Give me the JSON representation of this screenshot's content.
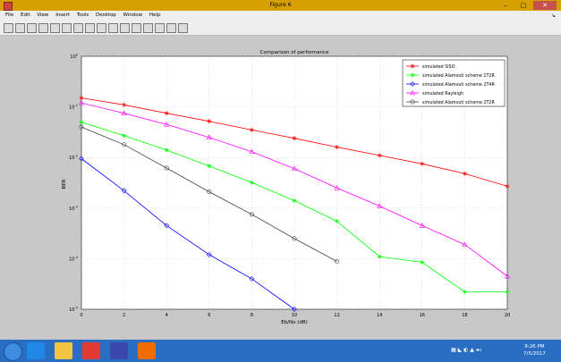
{
  "window": {
    "title": "Figure 6"
  },
  "menu": [
    "File",
    "Edit",
    "View",
    "Insert",
    "Tools",
    "Desktop",
    "Window",
    "Help"
  ],
  "toolbar": {
    "icons": [
      "new-figure-icon",
      "open-icon",
      "save-icon",
      "print-icon",
      "pointer-icon",
      "zoom-in-icon",
      "zoom-out-icon",
      "pan-icon",
      "rotate-icon",
      "data-cursor-icon",
      "brush-icon",
      "colorbar-icon",
      "legend-icon",
      "plot-tools-icon",
      "grid-icon",
      "dock-icon"
    ]
  },
  "chart_data": {
    "type": "line",
    "title": "Comparison of performance",
    "xlabel": "Eb/No (dB)",
    "ylabel": "BER",
    "xlim": [
      0,
      20
    ],
    "ylim": [
      1e-05,
      1
    ],
    "yscale": "log",
    "grid": true,
    "legend_position": "top-right",
    "xticks": [
      "0",
      "2",
      "4",
      "6",
      "8",
      "10",
      "12",
      "14",
      "16",
      "18",
      "20"
    ],
    "series": [
      {
        "name": "simulated SISO",
        "color": "#ff0000",
        "marker": "star",
        "x": [
          0,
          2,
          4,
          6,
          8,
          10,
          12,
          14,
          16,
          18,
          20
        ],
        "y": [
          0.15,
          0.11,
          0.075,
          0.052,
          0.035,
          0.024,
          0.016,
          0.011,
          0.0075,
          0.0048,
          0.0027
        ]
      },
      {
        "name": "simulated Alamouti scheme 1T2R",
        "color": "#00ff00",
        "marker": "star",
        "x": [
          0,
          2,
          4,
          6,
          8,
          10,
          12,
          14,
          16,
          18,
          20
        ],
        "y": [
          0.05,
          0.027,
          0.014,
          0.0068,
          0.0032,
          0.0014,
          0.00055,
          0.00011,
          8.5e-05,
          2.2e-05,
          2.2e-05
        ]
      },
      {
        "name": "simulated Alamouti scheme 2T4R",
        "color": "#0000ff",
        "marker": "diamond",
        "x": [
          0,
          2,
          4,
          6,
          8,
          10
        ],
        "y": [
          0.0095,
          0.0022,
          0.00045,
          0.00012,
          4e-05,
          1e-05
        ]
      },
      {
        "name": "simulated Rayleigh",
        "color": "#ff00ff",
        "marker": "triangle",
        "x": [
          0,
          2,
          4,
          6,
          8,
          10,
          12,
          14,
          16,
          18,
          20
        ],
        "y": [
          0.12,
          0.075,
          0.045,
          0.025,
          0.013,
          0.006,
          0.0025,
          0.0011,
          0.00045,
          0.00019,
          4.5e-05
        ]
      },
      {
        "name": "simulated Alamouti scheme 2T2R",
        "color": "#444444",
        "marker": "circle",
        "x": [
          0,
          2,
          4,
          6,
          8,
          10,
          12
        ],
        "y": [
          0.04,
          0.018,
          0.0062,
          0.0021,
          0.00075,
          0.00025,
          8.8e-05
        ]
      }
    ]
  },
  "taskbar": {
    "apps": [
      {
        "name": "ie-icon",
        "color": "#1e88e5"
      },
      {
        "name": "folder-icon",
        "color": "#f4c542"
      },
      {
        "name": "chrome-icon",
        "color": "#e53935"
      },
      {
        "name": "media-icon",
        "color": "#3949ab"
      },
      {
        "name": "matlab-icon",
        "color": "#ef6c00"
      }
    ],
    "time": "9:26 PM",
    "date": "7/5/2017"
  }
}
